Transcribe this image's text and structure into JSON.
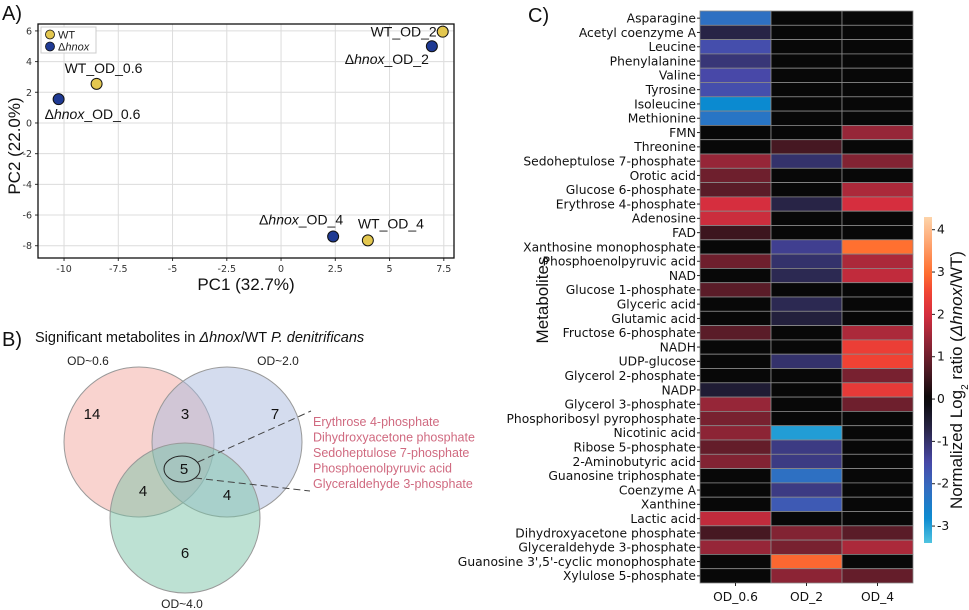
{
  "panels": {
    "a": "A)",
    "b": "B)",
    "c": "C)"
  },
  "chart_data": [
    {
      "type": "scatter",
      "title": "",
      "xlabel": "PC1 (32.7%)",
      "ylabel": "PC2 (22.0%)",
      "xlim": [
        -11.2,
        7.97
      ],
      "ylim": [
        -8.8,
        6.45
      ],
      "xticks": [
        -10,
        -7.5,
        -5,
        -2.5,
        0,
        2.5,
        5,
        7.5
      ],
      "xtick_labels": [
        "-10",
        "-7.5",
        "-5",
        "-2.5",
        "0",
        "2.5",
        "5",
        "7.5"
      ],
      "yticks": [
        6,
        4,
        2,
        0,
        -2,
        -4,
        -6,
        -8
      ],
      "ytick_labels": [
        "6",
        "4",
        "2",
        "0",
        "-2",
        "-4",
        "-6",
        "-8"
      ],
      "grid": true,
      "legend": {
        "placement": "top-left",
        "entries": [
          {
            "label": "WT",
            "color": "#e3c74f"
          },
          {
            "label": "Δhnox",
            "color": "#1f3a93"
          }
        ]
      },
      "points": [
        {
          "label": "WT_OD_0.6",
          "group": "WT",
          "x": -8.5,
          "y": 2.55
        },
        {
          "label": "Δhnox_OD_0.6",
          "group": "Δhnox",
          "x": -10.25,
          "y": 1.55
        },
        {
          "label": "WT_OD_2",
          "group": "WT",
          "x": 7.45,
          "y": 5.95
        },
        {
          "label": "Δhnox_OD_2",
          "group": "Δhnox",
          "x": 6.95,
          "y": 5.0
        },
        {
          "label": "Δhnox_OD_4",
          "group": "Δhnox",
          "x": 2.4,
          "y": -7.4
        },
        {
          "label": "WT_OD_4",
          "group": "WT",
          "x": 4.0,
          "y": -7.65
        }
      ]
    },
    {
      "type": "venn",
      "title": "Significant metabolites in Δhnox/WT P. denitrificans",
      "title_parts": [
        "Significant metabolites in ",
        "Δhnox",
        "/WT ",
        "P. denitrificans"
      ],
      "sets": [
        {
          "label": "OD~0.6",
          "color": "#f4a8a0"
        },
        {
          "label": "OD~2.0",
          "color": "#a9b9dd"
        },
        {
          "label": "OD~4.0",
          "color": "#7cc4a8"
        }
      ],
      "regions": {
        "only_0.6": 14,
        "only_2.0": 7,
        "only_4.0": 6,
        "0.6_and_2.0": 3,
        "0.6_and_4.0": 4,
        "2.0_and_4.0": 4,
        "all": 5
      },
      "shared_all_list": [
        "Erythrose 4-phosphate",
        "Dihydroxyacetone phosphate",
        "Sedoheptulose 7-phosphate",
        "Phosphoenolpyruvic acid",
        "Glyceraldehyde 3-phosphate"
      ],
      "list_color": "#d06a80"
    },
    {
      "type": "heatmap",
      "ylabel": "Metabolites",
      "colorbar_label_parts": [
        "Normalized Log",
        "2",
        " ratio (",
        "Δhnox",
        "/WT)"
      ],
      "colorbar_range": [
        -3.4,
        4.3
      ],
      "colorbar_ticks": [
        4,
        3,
        2,
        1,
        0,
        -1,
        -2,
        -3
      ],
      "colorbar_tick_labels": [
        "4",
        "3",
        "2",
        "1",
        "0",
        "-1",
        "-2",
        "-3"
      ],
      "columns": [
        "OD_0.6",
        "OD_2",
        "OD_4"
      ],
      "rows": [
        {
          "name": "Asparagine",
          "values": [
            -2.2,
            0,
            0
          ]
        },
        {
          "name": "Acetyl coenzyme A",
          "values": [
            -0.7,
            0,
            0
          ]
        },
        {
          "name": "Leucine",
          "values": [
            -1.6,
            0,
            0
          ]
        },
        {
          "name": "Phenylalanine",
          "values": [
            -1.1,
            0,
            0
          ]
        },
        {
          "name": "Valine",
          "values": [
            -1.5,
            0,
            0
          ]
        },
        {
          "name": "Tyrosine",
          "values": [
            -1.6,
            0,
            0
          ]
        },
        {
          "name": "Isoleucine",
          "values": [
            -2.8,
            0,
            0
          ]
        },
        {
          "name": "Methionine",
          "values": [
            -2.3,
            0,
            0
          ]
        },
        {
          "name": "FMN",
          "values": [
            0,
            0,
            1.4
          ]
        },
        {
          "name": "Threonine",
          "values": [
            0,
            0.6,
            0
          ]
        },
        {
          "name": "Sedoheptulose 7-phosphate",
          "values": [
            1.4,
            -1.0,
            1.2
          ]
        },
        {
          "name": "Orotic acid",
          "values": [
            1.0,
            0,
            0
          ]
        },
        {
          "name": "Glucose 6-phosphate",
          "values": [
            0.8,
            0,
            1.6
          ]
        },
        {
          "name": "Erythrose 4-phosphate",
          "values": [
            2.0,
            -0.7,
            2.0
          ]
        },
        {
          "name": "Adenosine",
          "values": [
            1.9,
            0,
            0
          ]
        },
        {
          "name": "FAD",
          "values": [
            0.5,
            0,
            0
          ]
        },
        {
          "name": "Xanthosine monophosphate",
          "values": [
            0,
            -1.3,
            3.0
          ]
        },
        {
          "name": "Phosphoenolpyruvic acid",
          "values": [
            1.0,
            -1.0,
            1.6
          ]
        },
        {
          "name": "NAD",
          "values": [
            0,
            -0.8,
            1.8
          ]
        },
        {
          "name": "Glucose 1-phosphate",
          "values": [
            0.8,
            0,
            0
          ]
        },
        {
          "name": "Glyceric acid",
          "values": [
            0,
            -0.8,
            0
          ]
        },
        {
          "name": "Glutamic acid",
          "values": [
            0,
            -0.6,
            0
          ]
        },
        {
          "name": "Fructose 6-phosphate",
          "values": [
            0.8,
            0,
            1.6
          ]
        },
        {
          "name": "NADH",
          "values": [
            0,
            0,
            2.4
          ]
        },
        {
          "name": "UDP-glucose",
          "values": [
            0,
            -1.0,
            2.5
          ]
        },
        {
          "name": "Glycerol 2-phosphate",
          "values": [
            0,
            0,
            1.1
          ]
        },
        {
          "name": "NADP",
          "values": [
            -0.5,
            0,
            2.3
          ]
        },
        {
          "name": "Glycerol 3-phosphate",
          "values": [
            1.4,
            0,
            1.0
          ]
        },
        {
          "name": "Phosphoribosyl pyrophosphate",
          "values": [
            1.1,
            0,
            0
          ]
        },
        {
          "name": "Nicotinic acid",
          "values": [
            1.3,
            -3.0,
            0
          ]
        },
        {
          "name": "Ribose 5-phosphate",
          "values": [
            0.9,
            -1.2,
            0
          ]
        },
        {
          "name": "2-Aminobutyric acid",
          "values": [
            1.2,
            -1.2,
            0
          ]
        },
        {
          "name": "Guanosine triphosphate",
          "values": [
            0,
            -2.2,
            0
          ]
        },
        {
          "name": "Coenzyme A",
          "values": [
            0,
            -1.2,
            0
          ]
        },
        {
          "name": "Xanthine",
          "values": [
            0,
            -1.8,
            0
          ]
        },
        {
          "name": "Lactic acid",
          "values": [
            1.8,
            0,
            0
          ]
        },
        {
          "name": "Dihydroxyacetone phosphate",
          "values": [
            0.6,
            1.2,
            0.8
          ]
        },
        {
          "name": "Glyceraldehyde 3-phosphate",
          "values": [
            1.4,
            1.1,
            1.6
          ]
        },
        {
          "name": "Guanosine 3',5'-cyclic monophosphate",
          "values": [
            0,
            2.9,
            0
          ]
        },
        {
          "name": "Xylulose 5-phosphate",
          "values": [
            0,
            1.3,
            0.9
          ]
        }
      ]
    }
  ]
}
